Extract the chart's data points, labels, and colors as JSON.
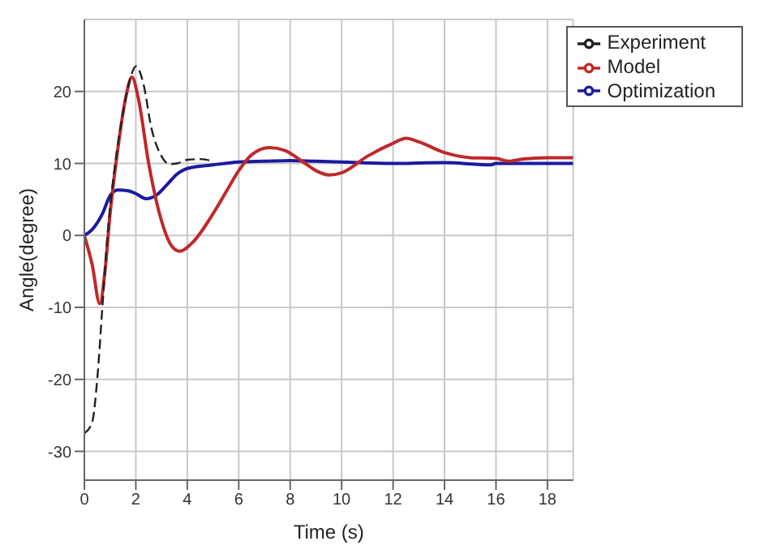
{
  "chart_data": {
    "type": "line",
    "xlabel": "Time (s)",
    "ylabel": "Angle(degree)",
    "xlim": [
      0,
      19
    ],
    "xticks": [
      0,
      2,
      4,
      6,
      8,
      10,
      12,
      14,
      16,
      18
    ],
    "ylim": [
      -34,
      30
    ],
    "yticks": [
      -30,
      -20,
      -10,
      0,
      10,
      20
    ],
    "grid": true,
    "legend": "top right",
    "marker": "none",
    "series": [
      {
        "name": "Experiment",
        "color": "#222222",
        "line_style": "dashed",
        "x": [
          0,
          0.3,
          0.5,
          0.7,
          0.9,
          1.2,
          1.5,
          1.8,
          2.0,
          2.3,
          2.6,
          3.0,
          3.3,
          3.6,
          4.0,
          4.5,
          5.0
        ],
        "values": [
          -27.5,
          -26,
          -20,
          -10,
          0,
          10,
          17,
          22,
          23.5,
          21,
          15,
          11,
          9.9,
          10,
          10.5,
          10.6,
          10.3
        ]
      },
      {
        "name": "Model",
        "color": "#c0282a",
        "line_style": "solid",
        "x": [
          0,
          0.3,
          0.6,
          0.8,
          1.0,
          1.3,
          1.6,
          1.85,
          2.1,
          2.5,
          3.0,
          3.4,
          3.7,
          4.2,
          5,
          5.5,
          6,
          6.5,
          7.2,
          7.8,
          8.5,
          9,
          9.5,
          10,
          11,
          12,
          12.5,
          13,
          14,
          15,
          16,
          16.5,
          17,
          18,
          19
        ],
        "values": [
          0,
          -4,
          -9.5,
          -5,
          3,
          12,
          19,
          22,
          19,
          10,
          2,
          -1.5,
          -2.2,
          -1,
          3,
          6,
          9,
          11.2,
          12.2,
          11.8,
          10.2,
          9,
          8.4,
          8.7,
          11,
          12.8,
          13.5,
          13,
          11.5,
          10.8,
          10.7,
          10.3,
          10.6,
          10.8,
          10.8
        ]
      },
      {
        "name": "Optimization",
        "color": "#1a1aa0",
        "line_style": "solid",
        "x": [
          0,
          0.3,
          0.7,
          1.0,
          1.3,
          1.7,
          2.0,
          2.4,
          2.8,
          3.2,
          3.6,
          4,
          5,
          6,
          7,
          8,
          9,
          10,
          12,
          14,
          15.8,
          16,
          19
        ],
        "values": [
          0,
          0.8,
          3,
          5.5,
          6.3,
          6.2,
          5.8,
          5.1,
          5.6,
          7,
          8.5,
          9.3,
          9.8,
          10.2,
          10.3,
          10.4,
          10.3,
          10.2,
          10,
          10.1,
          9.8,
          10,
          10
        ]
      }
    ]
  }
}
